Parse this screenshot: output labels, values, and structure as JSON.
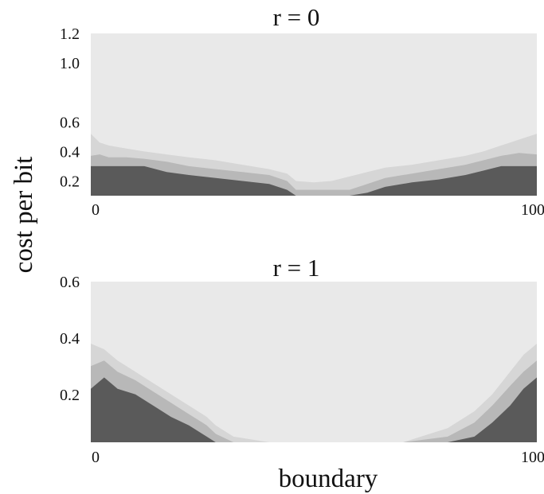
{
  "chart_data": [
    {
      "type": "heatmap",
      "title": "r = 0",
      "xlabel": "",
      "ylabel": "",
      "x_tick_labels": [
        "0",
        "100"
      ],
      "x_ticks": [
        0,
        100
      ],
      "xlim": [
        0,
        100
      ],
      "y_tick_labels": [
        "1.2",
        "1.0",
        "0.6",
        "0.4",
        "0.2"
      ],
      "y_ticks": [
        1.2,
        1.0,
        0.6,
        0.4,
        0.2
      ],
      "ylim": [
        0.1,
        1.2
      ],
      "grid": false,
      "legend": "none",
      "regions": [
        {
          "shade": "dark",
          "color": "#5a5a5a",
          "boundary": {
            "x": [
              0,
              2,
              4,
              8,
              12,
              17,
              22,
              28,
              34,
              40,
              44,
              46,
              50,
              54,
              58,
              62,
              66,
              72,
              78,
              84,
              88,
              92,
              96,
              100
            ],
            "y": [
              0.3,
              0.3,
              0.3,
              0.3,
              0.3,
              0.26,
              0.24,
              0.22,
              0.2,
              0.18,
              0.14,
              0.1,
              0.1,
              0.1,
              0.1,
              0.12,
              0.16,
              0.19,
              0.21,
              0.24,
              0.27,
              0.3,
              0.3,
              0.3
            ]
          }
        },
        {
          "shade": "mid",
          "color": "#b8b8b8",
          "boundary": {
            "x": [
              0,
              2,
              4,
              8,
              12,
              17,
              22,
              28,
              34,
              40,
              44,
              46,
              50,
              54,
              58,
              62,
              66,
              72,
              78,
              84,
              88,
              92,
              96,
              100
            ],
            "y": [
              0.37,
              0.38,
              0.36,
              0.36,
              0.35,
              0.33,
              0.3,
              0.28,
              0.26,
              0.24,
              0.2,
              0.14,
              0.14,
              0.14,
              0.14,
              0.18,
              0.22,
              0.25,
              0.28,
              0.31,
              0.34,
              0.37,
              0.39,
              0.38
            ]
          }
        },
        {
          "shade": "light",
          "color": "#d6d6d6",
          "boundary": {
            "x": [
              0,
              2,
              4,
              8,
              12,
              17,
              22,
              28,
              34,
              40,
              44,
              46,
              50,
              54,
              58,
              62,
              66,
              72,
              78,
              84,
              88,
              92,
              96,
              100
            ],
            "y": [
              0.52,
              0.46,
              0.44,
              0.42,
              0.4,
              0.38,
              0.36,
              0.34,
              0.31,
              0.28,
              0.25,
              0.2,
              0.19,
              0.2,
              0.23,
              0.26,
              0.29,
              0.31,
              0.34,
              0.37,
              0.4,
              0.44,
              0.48,
              0.52
            ]
          }
        },
        {
          "shade": "background",
          "color": "#e9e9e9"
        }
      ]
    },
    {
      "type": "heatmap",
      "title": "r = 1",
      "xlabel": "boundary",
      "ylabel": "",
      "x_tick_labels": [
        "0",
        "100"
      ],
      "x_ticks": [
        0,
        100
      ],
      "xlim": [
        0,
        100
      ],
      "y_tick_labels": [
        "0.6",
        "0.4",
        "0.2"
      ],
      "y_ticks": [
        0.6,
        0.4,
        0.2
      ],
      "ylim": [
        0.03,
        0.6
      ],
      "grid": false,
      "legend": "none",
      "regions": [
        {
          "shade": "dark",
          "color": "#5a5a5a",
          "boundary": {
            "x": [
              0,
              3,
              6,
              10,
              14,
              18,
              22,
              26,
              28,
              32,
              40,
              50,
              60,
              70,
              80,
              86,
              90,
              94,
              97,
              100
            ],
            "y": [
              0.22,
              0.26,
              0.22,
              0.2,
              0.16,
              0.12,
              0.09,
              0.05,
              0.03,
              0.03,
              0.03,
              0.03,
              0.03,
              0.03,
              0.03,
              0.05,
              0.1,
              0.16,
              0.22,
              0.26
            ]
          }
        },
        {
          "shade": "mid",
          "color": "#b8b8b8",
          "boundary": {
            "x": [
              0,
              3,
              6,
              10,
              14,
              18,
              22,
              26,
              28,
              32,
              40,
              50,
              60,
              70,
              80,
              86,
              90,
              94,
              97,
              100
            ],
            "y": [
              0.3,
              0.32,
              0.28,
              0.25,
              0.21,
              0.17,
              0.13,
              0.09,
              0.06,
              0.03,
              0.03,
              0.03,
              0.03,
              0.03,
              0.05,
              0.1,
              0.16,
              0.23,
              0.28,
              0.32
            ]
          }
        },
        {
          "shade": "light",
          "color": "#d6d6d6",
          "boundary": {
            "x": [
              0,
              3,
              6,
              10,
              14,
              18,
              22,
              26,
              28,
              32,
              40,
              50,
              60,
              70,
              80,
              86,
              90,
              94,
              97,
              100
            ],
            "y": [
              0.38,
              0.36,
              0.32,
              0.28,
              0.24,
              0.2,
              0.16,
              0.12,
              0.09,
              0.05,
              0.03,
              0.03,
              0.03,
              0.03,
              0.08,
              0.14,
              0.2,
              0.28,
              0.34,
              0.38
            ]
          }
        },
        {
          "shade": "background",
          "color": "#e9e9e9"
        }
      ]
    }
  ],
  "shared_ylabel": "cost per bit"
}
